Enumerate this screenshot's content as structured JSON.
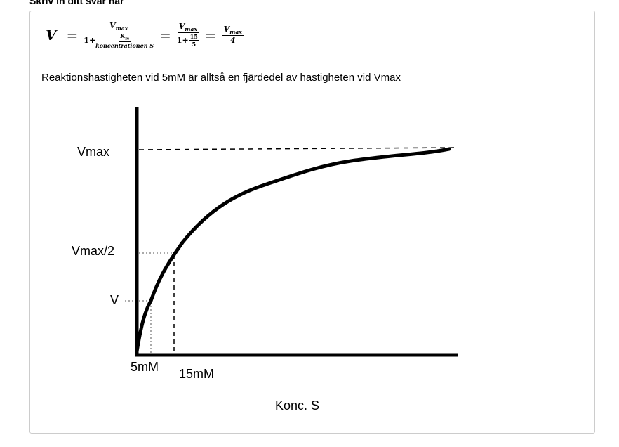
{
  "header": {
    "title": "Skriv in ditt svar här"
  },
  "formula": {
    "lhs": "V",
    "equals": [
      "=",
      "=",
      "="
    ],
    "frac1": {
      "num": {
        "base": "V",
        "sub": "max"
      },
      "den": {
        "one": "1+",
        "num": {
          "base": "K",
          "sub": "m"
        },
        "den": "koncentrationen S"
      }
    },
    "frac2": {
      "num": {
        "base": "V",
        "sub": "max"
      },
      "den": {
        "one": "1+",
        "num": "15",
        "den": "5"
      }
    },
    "frac3": {
      "num": {
        "base": "V",
        "sub": "max"
      },
      "den": "4"
    }
  },
  "sentence": "Reaktionshastigheten vid 5mM är alltså en fjärdedel av hastigheten vid Vmax",
  "diagram": {
    "labels": {
      "vmax": "Vmax",
      "half": "Vmax/2",
      "v": "V",
      "s5": "5mM",
      "s15": "15mM",
      "x_axis": "Konc. S"
    }
  }
}
